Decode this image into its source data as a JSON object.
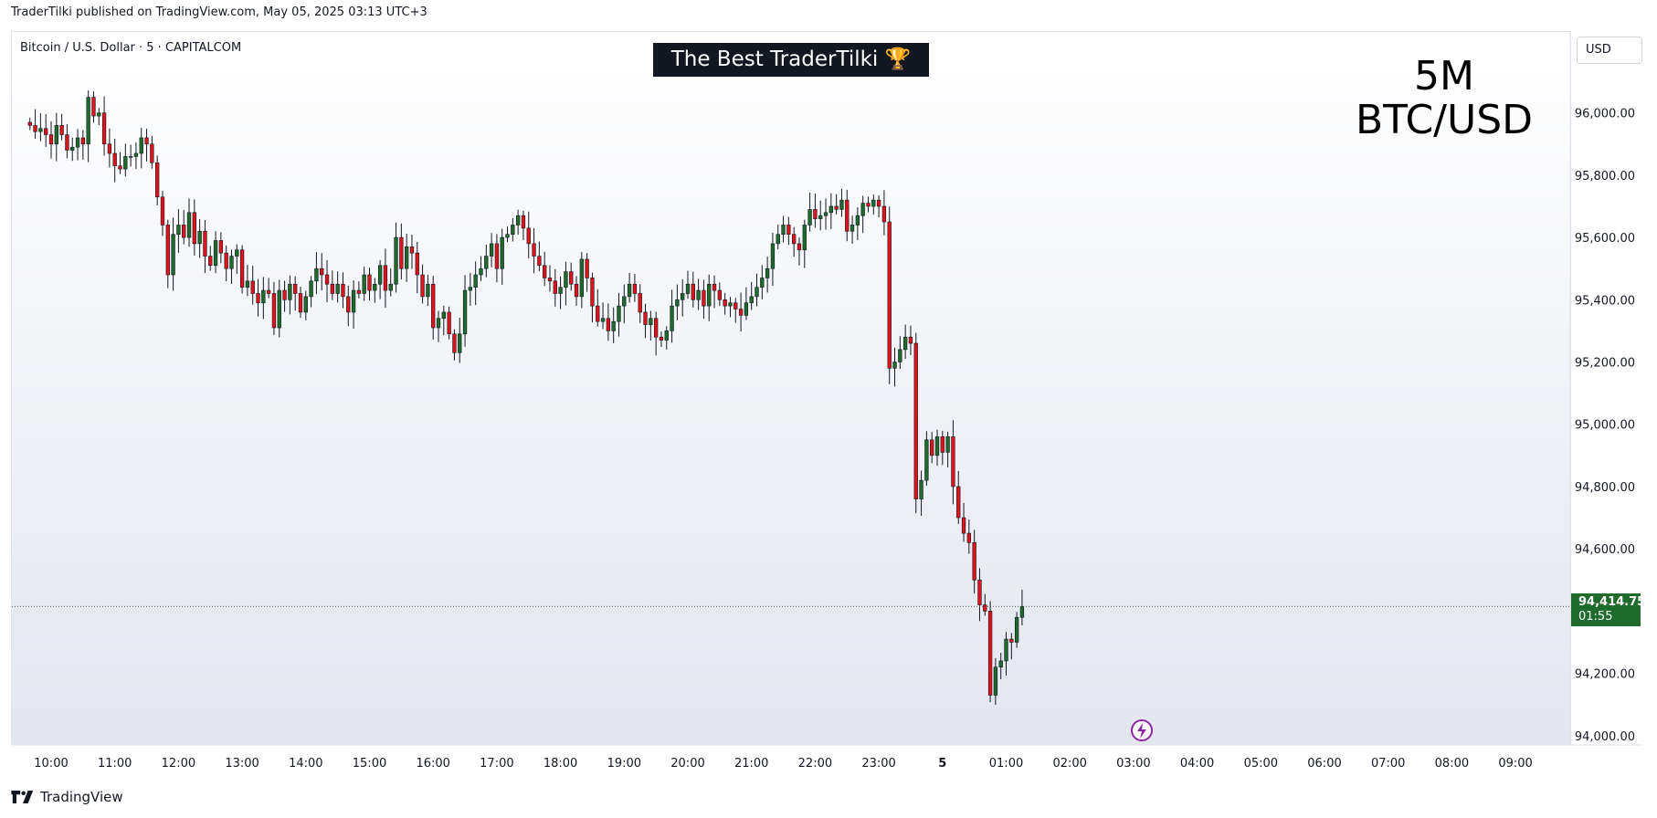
{
  "header": {
    "published": "TraderTilki published on TradingView.com, May 05, 2025 03:13 UTC+3"
  },
  "symbol_line": "Bitcoin / U.S. Dollar · 5 · CAPITALCOM",
  "banner": "The Best TraderTilki 🏆",
  "overlay": {
    "line1": "5M",
    "line2": "BTC/USD"
  },
  "currency_button": "USD",
  "last_price": {
    "value": "94,414.75",
    "countdown": "01:55",
    "color": "#1e6b2b"
  },
  "footer": {
    "brand": "TradingView"
  },
  "colors": {
    "up": "#1e6b2b",
    "down": "#e0121c",
    "wick": "#131722"
  },
  "chart_data": {
    "type": "candlestick",
    "title": "",
    "xlabel": "",
    "ylabel": "",
    "ylim": [
      93970,
      96260
    ],
    "y_ticks": [
      94000,
      94200,
      94400,
      94600,
      94800,
      95000,
      95200,
      95400,
      95600,
      95800,
      96000
    ],
    "y_tick_labels": [
      "94,000.00",
      "94,200.00",
      "94,400.00",
      "94,600.00",
      "94,800.00",
      "95,000.00",
      "95,200.00",
      "95,400.00",
      "95,600.00",
      "95,800.00",
      "96,000.00"
    ],
    "x_ticks": [
      "10:00",
      "11:00",
      "12:00",
      "13:00",
      "14:00",
      "15:00",
      "16:00",
      "17:00",
      "18:00",
      "19:00",
      "20:00",
      "21:00",
      "22:00",
      "23:00",
      "5",
      "01:00",
      "02:00",
      "03:00",
      "04:00",
      "05:00",
      "06:00",
      "07:00",
      "08:00",
      "09:00"
    ],
    "interval_minutes": 5,
    "first_bar_time": "09:40",
    "last_price": 94414.75,
    "closes": [
      95960,
      95940,
      95950,
      95930,
      95900,
      95960,
      95930,
      95880,
      95890,
      95920,
      95900,
      96050,
      95990,
      96000,
      95900,
      95870,
      95830,
      95820,
      95860,
      95860,
      95870,
      95920,
      95900,
      95840,
      95730,
      95640,
      95480,
      95610,
      95640,
      95600,
      95680,
      95580,
      95620,
      95540,
      95510,
      95590,
      95550,
      95500,
      95540,
      95560,
      95440,
      95460,
      95420,
      95390,
      95430,
      95420,
      95310,
      95430,
      95400,
      95450,
      95420,
      95360,
      95410,
      95460,
      95500,
      95480,
      95450,
      95420,
      95450,
      95410,
      95360,
      95430,
      95420,
      95480,
      95430,
      95450,
      95510,
      95430,
      95450,
      95600,
      95500,
      95570,
      95550,
      95480,
      95410,
      95450,
      95310,
      95340,
      95360,
      95290,
      95230,
      95290,
      95430,
      95440,
      95480,
      95500,
      95540,
      95580,
      95500,
      95600,
      95610,
      95640,
      95670,
      95630,
      95580,
      95540,
      95510,
      95470,
      95460,
      95420,
      95440,
      95490,
      95450,
      95410,
      95530,
      95470,
      95380,
      95330,
      95340,
      95300,
      95330,
      95380,
      95410,
      95450,
      95420,
      95360,
      95320,
      95340,
      95280,
      95270,
      95300,
      95380,
      95400,
      95420,
      95450,
      95400,
      95430,
      95380,
      95450,
      95430,
      95400,
      95380,
      95390,
      95370,
      95350,
      95390,
      95410,
      95440,
      95470,
      95500,
      95580,
      95610,
      95640,
      95610,
      95580,
      95560,
      95640,
      95690,
      95660,
      95670,
      95680,
      95700,
      95690,
      95720,
      95620,
      95640,
      95670,
      95710,
      95700,
      95720,
      95700,
      95650,
      95180,
      95200,
      95240,
      95280,
      95260,
      94760,
      94820,
      94950,
      94900,
      94960,
      94910,
      94960,
      94800,
      94700,
      94650,
      94620,
      94500,
      94420,
      94400,
      94130,
      94220,
      94240,
      94310,
      94300,
      94380,
      94414.75
    ]
  }
}
